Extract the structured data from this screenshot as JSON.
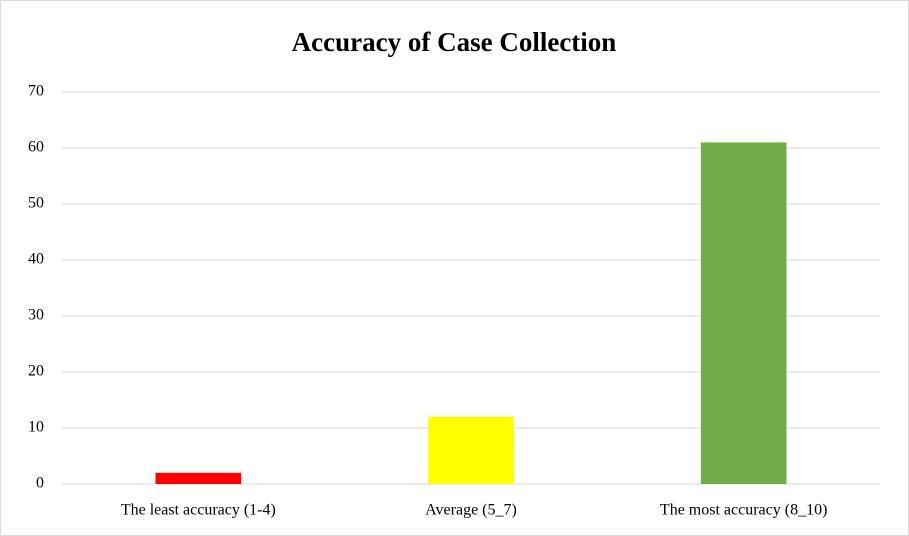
{
  "chart_data": {
    "type": "bar",
    "title": "Accuracy of Case Collection",
    "categories": [
      "The least accuracy (1-4)",
      "Average (5_7)",
      "The most accuracy (8_10)"
    ],
    "values": [
      2,
      12,
      61
    ],
    "colors": [
      "#ff0000",
      "#ffff00",
      "#70ad47"
    ],
    "ylim": [
      0,
      70
    ],
    "yticks": [
      0,
      10,
      20,
      30,
      40,
      50,
      60,
      70
    ],
    "grid": true
  }
}
